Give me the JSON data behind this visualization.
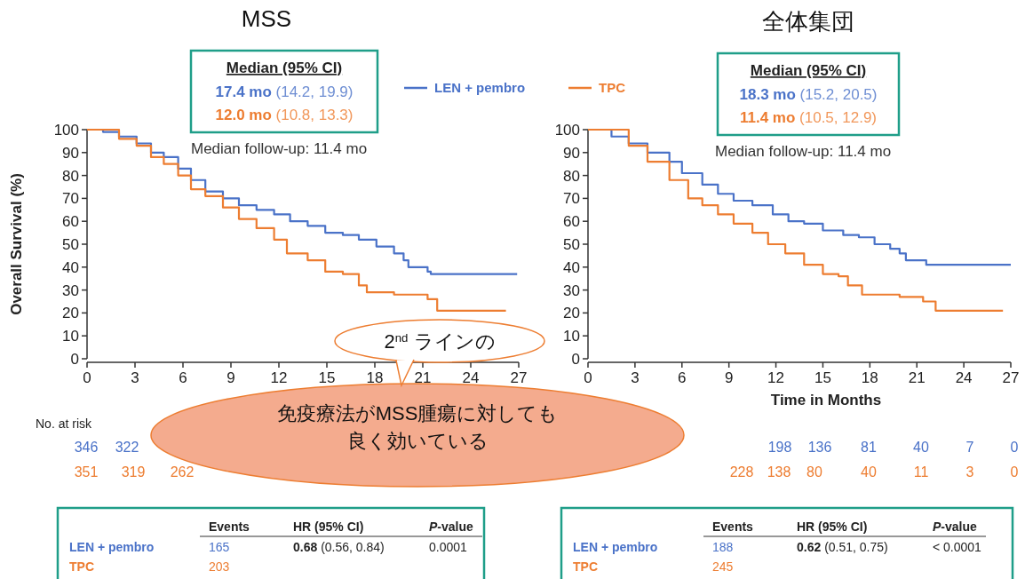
{
  "chart_data": [
    {
      "type": "step",
      "title": "MSS",
      "ylabel": "Overall Survival (%)",
      "xlim": [
        0,
        27
      ],
      "xticks": [
        0,
        3,
        6,
        9,
        12,
        15,
        18,
        21,
        24,
        27
      ],
      "ylim": [
        0,
        100
      ],
      "yticks": [
        0,
        10,
        20,
        30,
        40,
        50,
        60,
        70,
        80,
        90,
        100
      ],
      "legend": "top",
      "line_style": "solid",
      "series": [
        {
          "name": "LEN + pembro",
          "color": "#4a72c8",
          "x": [
            0,
            1,
            2,
            3.1,
            4,
            4.8,
            5.7,
            6.5,
            7.4,
            8.5,
            9.5,
            10.6,
            11.7,
            12.7,
            13.8,
            14.9,
            16,
            17,
            18.1,
            19.2,
            19.8,
            20.1,
            21.3,
            21.5,
            26.9
          ],
          "values": [
            100,
            99,
            97,
            94,
            90,
            88,
            83,
            78,
            73,
            70,
            67,
            65,
            63,
            60,
            58,
            55,
            54,
            52,
            49,
            46,
            43,
            40,
            38,
            37,
            37
          ]
        },
        {
          "name": "TPC",
          "color": "#ed7d31",
          "x": [
            0,
            2,
            3.1,
            4,
            4.8,
            5.7,
            6.5,
            7.4,
            8.5,
            9.5,
            10.6,
            11.7,
            12.5,
            13.8,
            14.9,
            16,
            17,
            17.5,
            19.2,
            21.3,
            21.9,
            26.2
          ],
          "values": [
            100,
            96,
            93,
            88,
            85,
            80,
            74,
            71,
            66,
            61,
            57,
            52,
            46,
            43,
            38,
            37,
            32,
            29,
            28,
            26,
            21,
            21
          ]
        }
      ],
      "annotations": [
        "Median (95% CI)",
        "17.4 mo (14.2, 19.9)",
        "12.0 mo (10.8, 13.3)",
        "Median follow-up: 11.4 mo",
        "Events",
        "HR (95% CI)",
        "P-value",
        "LEN + pembro",
        "165",
        "0.68 (0.56, 0.84)",
        "0.0001",
        "TPC",
        "203",
        "No. at risk",
        "346",
        "322",
        "351",
        "319",
        "262",
        "2$^{nd}$ ラインの",
        "免疫療法がMSS腫瘍に対しても",
        "良く効いている"
      ]
    },
    {
      "type": "step",
      "title": "全体集団",
      "xlabel": "Time in Months",
      "xlim": [
        0,
        27
      ],
      "xticks": [
        0,
        3,
        6,
        9,
        12,
        15,
        18,
        21,
        24,
        27
      ],
      "ylim": [
        0,
        100
      ],
      "yticks": [
        0,
        10,
        20,
        30,
        40,
        50,
        60,
        70,
        80,
        90,
        100
      ],
      "line_style": "solid",
      "series": [
        {
          "color": "#4a72c8",
          "x": [
            0,
            1.5,
            2.6,
            3.8,
            5.2,
            6,
            7.3,
            8.3,
            9.3,
            10.5,
            11.8,
            12.8,
            13.8,
            15,
            16.3,
            17.3,
            18.3,
            19.3,
            19.9,
            20.3,
            21.6,
            27
          ],
          "values": [
            100,
            97,
            94,
            90,
            86,
            81,
            76,
            72,
            69,
            67,
            63,
            60,
            59,
            56,
            54,
            53,
            50,
            48,
            46,
            43,
            41,
            41
          ]
        },
        {
          "color": "#ed7d31",
          "x": [
            0,
            2.6,
            3.8,
            5.2,
            6.4,
            7.3,
            8.3,
            9.3,
            10.5,
            11.5,
            12.6,
            13.8,
            15,
            16,
            16.6,
            17.5,
            19.9,
            21.4,
            22.2,
            26.5
          ],
          "values": [
            100,
            93,
            86,
            78,
            70,
            67,
            63,
            59,
            55,
            50,
            46,
            41,
            37,
            36,
            32,
            28,
            27,
            25,
            21,
            21
          ]
        }
      ],
      "annotations": [
        "Median (95% CI)",
        "18.3 mo (15.2, 20.5)",
        "11.4 mo (10.5, 12.9)",
        "Median follow-up: 11.4 mo",
        "Events",
        "HR (95% CI)",
        "P-value",
        "LEN + pembro",
        "188",
        "0.62 (0.51, 0.75)",
        "< 0.0001",
        "TPC",
        "245",
        "198",
        "136",
        "81",
        "40",
        "7",
        "0",
        "228",
        "138",
        "80",
        "40",
        "11",
        "3",
        "0"
      ]
    }
  ]
}
